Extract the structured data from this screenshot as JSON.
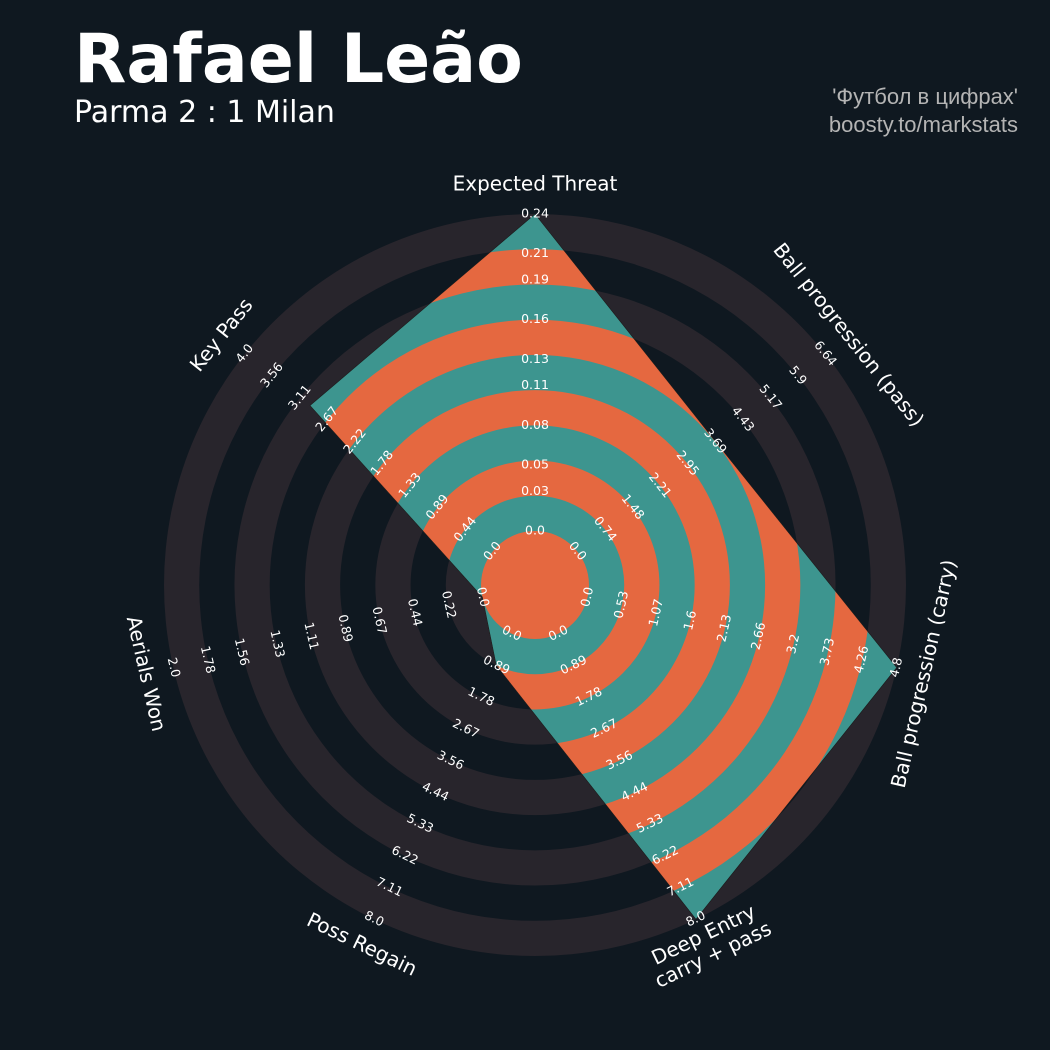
{
  "chart_data": {
    "type": "radar",
    "title": "Rafael Leão",
    "subtitle": "Parma 2 : 1 Milan",
    "credits": [
      "'Футбол в цифрах'",
      "boosty.to/markstats"
    ],
    "categories": [
      "Expected Threat",
      "Ball progression (pass)",
      "Ball progression (carry)",
      "Deep Entry\ncarry + pass",
      "Poss Regain",
      "Aerials Won",
      "Key Pass"
    ],
    "values": [
      0.24,
      3.7,
      4.8,
      8.0,
      0.89,
      0,
      2.95
    ],
    "ranges": [
      [
        0,
        0.24
      ],
      [
        0,
        6.64
      ],
      [
        0,
        4.8
      ],
      [
        0,
        8
      ],
      [
        0,
        8
      ],
      [
        0,
        2
      ],
      [
        0,
        4
      ]
    ],
    "ticks": [
      [
        {
          "value": 0,
          "label": "0.0"
        },
        0.03,
        0.05,
        0.08,
        0.11,
        0.13,
        0.16,
        0.19,
        0.21,
        0.24
      ],
      [
        {
          "value": 0,
          "label": "0.0"
        },
        0.74,
        1.48,
        2.21,
        2.95,
        3.69,
        4.43,
        5.17,
        5.9,
        6.64
      ],
      [
        {
          "value": 0,
          "label": "0.0"
        },
        0.53,
        1.07,
        1.6,
        2.13,
        2.66,
        3.2,
        3.73,
        4.26,
        4.8
      ],
      [
        {
          "value": 0,
          "label": "0.0"
        },
        0.89,
        1.78,
        2.67,
        3.56,
        4.44,
        5.33,
        6.22,
        7.11,
        {
          "value": 8,
          "label": "8.0"
        }
      ],
      [
        {
          "value": 0,
          "label": "0.0"
        },
        0.89,
        1.78,
        2.67,
        3.56,
        4.44,
        5.33,
        6.22,
        7.11,
        {
          "value": 8,
          "label": "8.0"
        }
      ],
      [
        {
          "value": 0,
          "label": "0.0"
        },
        0.22,
        0.44,
        0.67,
        0.89,
        1.11,
        1.33,
        1.56,
        1.78,
        {
          "value": 2,
          "label": "2.0"
        }
      ],
      [
        {
          "value": 0,
          "label": "0.0"
        },
        0.44,
        0.89,
        1.33,
        1.78,
        2.22,
        2.67,
        3.11,
        3.56,
        {
          "value": 4,
          "label": "4.0"
        }
      ]
    ],
    "colors": [
      "#3d958f",
      "#e56840"
    ]
  }
}
